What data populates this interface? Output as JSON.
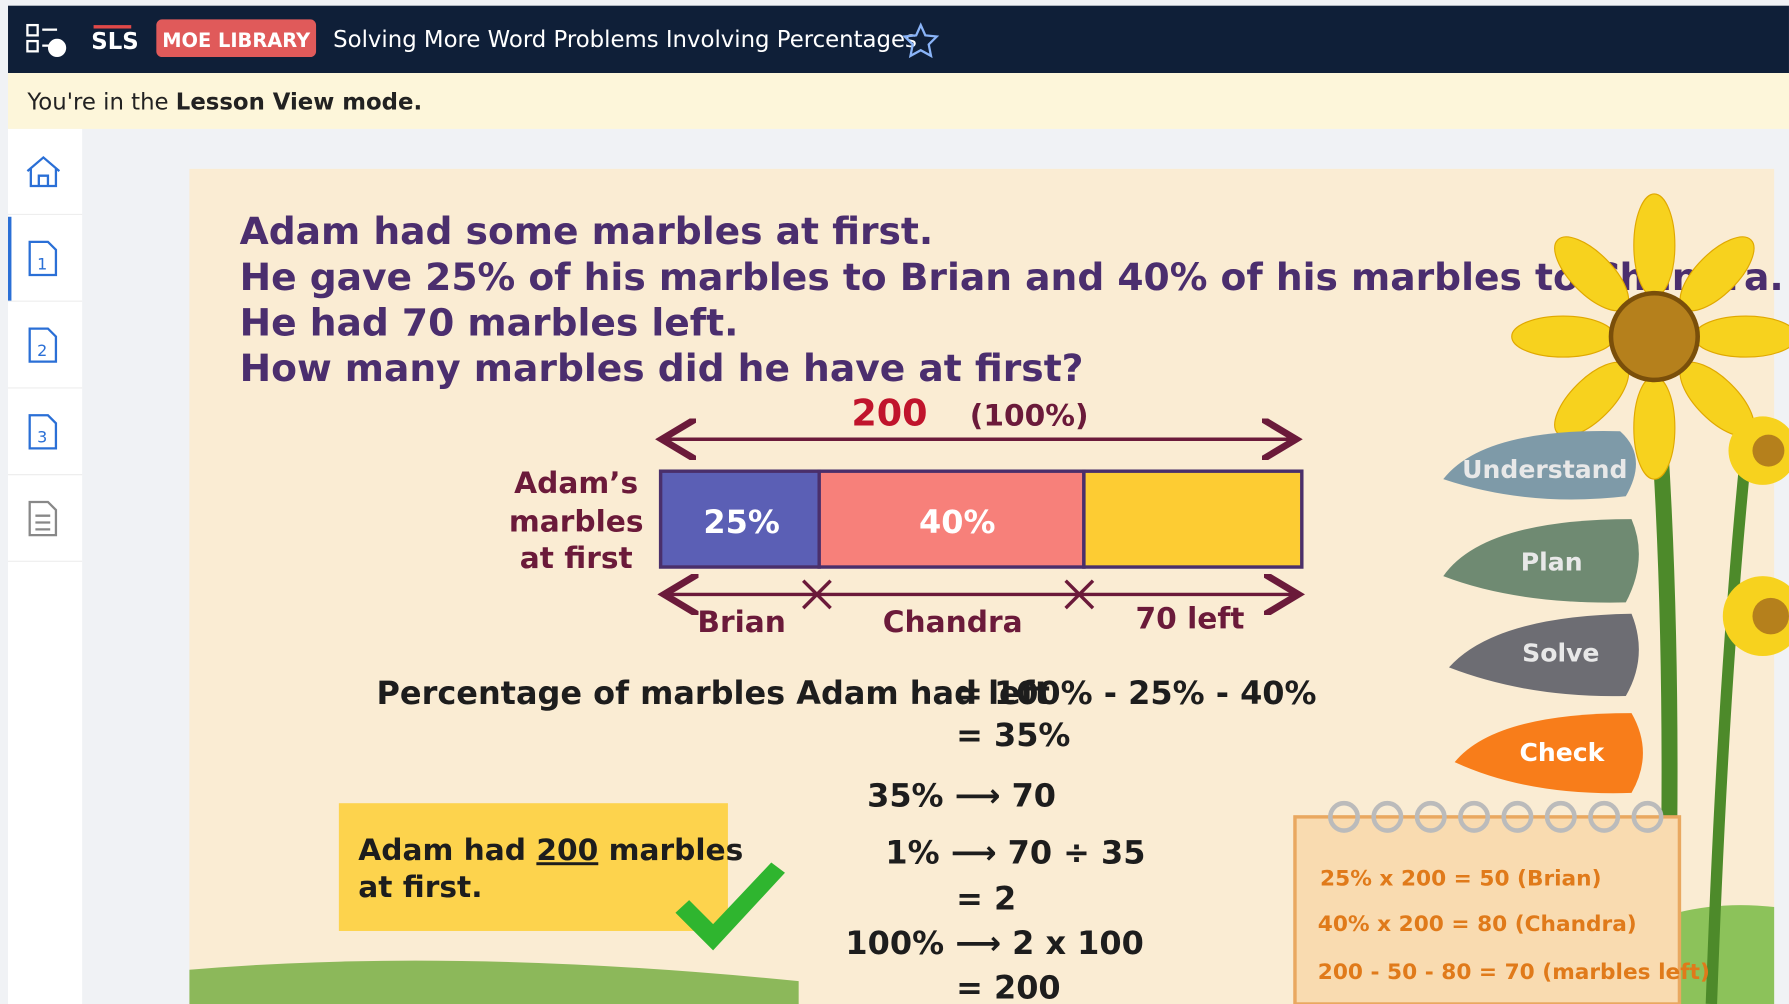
{
  "header": {
    "logo": "SLS",
    "badge": "MOE LIBRARY",
    "title": "Solving More Word Problems Involving Percentages"
  },
  "banner": {
    "text": "You're in the ",
    "mode": "Lesson View mode."
  },
  "sidebar": {
    "pages": [
      "1",
      "2",
      "3"
    ]
  },
  "lesson": {
    "question": [
      "Adam had some marbles at first.",
      "He gave 25% of his marbles to Brian and 40% of his marbles to Chandra.",
      "He had 70 marbles left.",
      "How many marbles did he have at first?"
    ],
    "bar_model": {
      "total": "200",
      "total_percent": "(100%)",
      "label": [
        "Adam’s",
        "marbles",
        "at first"
      ],
      "segments": [
        "25%",
        "40%"
      ],
      "parts": [
        "Brian",
        "Chandra",
        "70 left"
      ]
    },
    "working": [
      "Percentage of marbles Adam had left",
      "=  100%  -  25%  -  40%",
      "=  35%",
      "35%  ⟶   70",
      "1%  ⟶   70  ÷  35",
      "=  2",
      "100%  ⟶    2  x  100",
      "=  200"
    ],
    "answer": {
      "before": "Adam had ",
      "number": "200",
      "after": " marbles",
      "line2": "at first."
    },
    "steps": [
      "Understand",
      "Plan",
      "Solve",
      "Check"
    ],
    "notes": [
      "25% x 200 = 50 (Brian)",
      "40% x 200 = 80 (Chandra)",
      "200 - 50 - 80 = 70 (marbles left)"
    ]
  }
}
